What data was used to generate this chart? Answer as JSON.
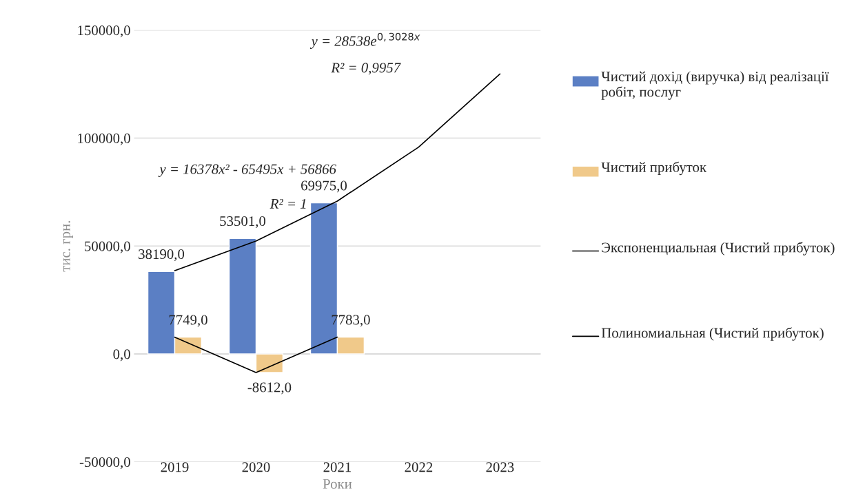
{
  "chart_data": {
    "type": "bar",
    "xlabel": "Роки",
    "ylabel": "тис. грн.",
    "categories": [
      "2019",
      "2020",
      "2021",
      "2022",
      "2023"
    ],
    "series": [
      {
        "name": "Чистий дохід (виручка) від реалізації  робіт, послуг",
        "color": "#5b7fc4",
        "values": [
          38190,
          53501,
          69975,
          null,
          null
        ],
        "value_labels": [
          "38190,0",
          "53501,0",
          "69975,0",
          null,
          null
        ]
      },
      {
        "name": "Чистий прибуток",
        "color": "#f0c98a",
        "values": [
          7749,
          -8612,
          7783,
          null,
          null
        ],
        "value_labels": [
          "7749,0",
          "-8612,0",
          "7783,0",
          null,
          null
        ]
      },
      {
        "name": "Экспоненциальная (Чистий прибуток)",
        "type": "line",
        "color": "#000000",
        "values": [
          38600,
          52300,
          70800,
          95800,
          129700
        ]
      },
      {
        "name": "Полиномиальная (Чистий прибуток)",
        "type": "line",
        "color": "#000000",
        "values": [
          7749,
          -8612,
          7783,
          null,
          null
        ]
      }
    ],
    "ylim": [
      -50000,
      150000
    ],
    "yticks": [
      {
        "value": -50000,
        "label": "-50000,0"
      },
      {
        "value": 0,
        "label": "0,0"
      },
      {
        "value": 50000,
        "label": "50000,0"
      },
      {
        "value": 100000,
        "label": "100000,0"
      },
      {
        "value": 150000,
        "label": "150000,0"
      }
    ],
    "grid": "y",
    "legend": "right",
    "annotations": [
      "y = 28538e$^{0,3028x}$",
      "R² = 0,9957",
      "y = 16378x² - 65495x + 56866",
      "R² = 1"
    ]
  }
}
